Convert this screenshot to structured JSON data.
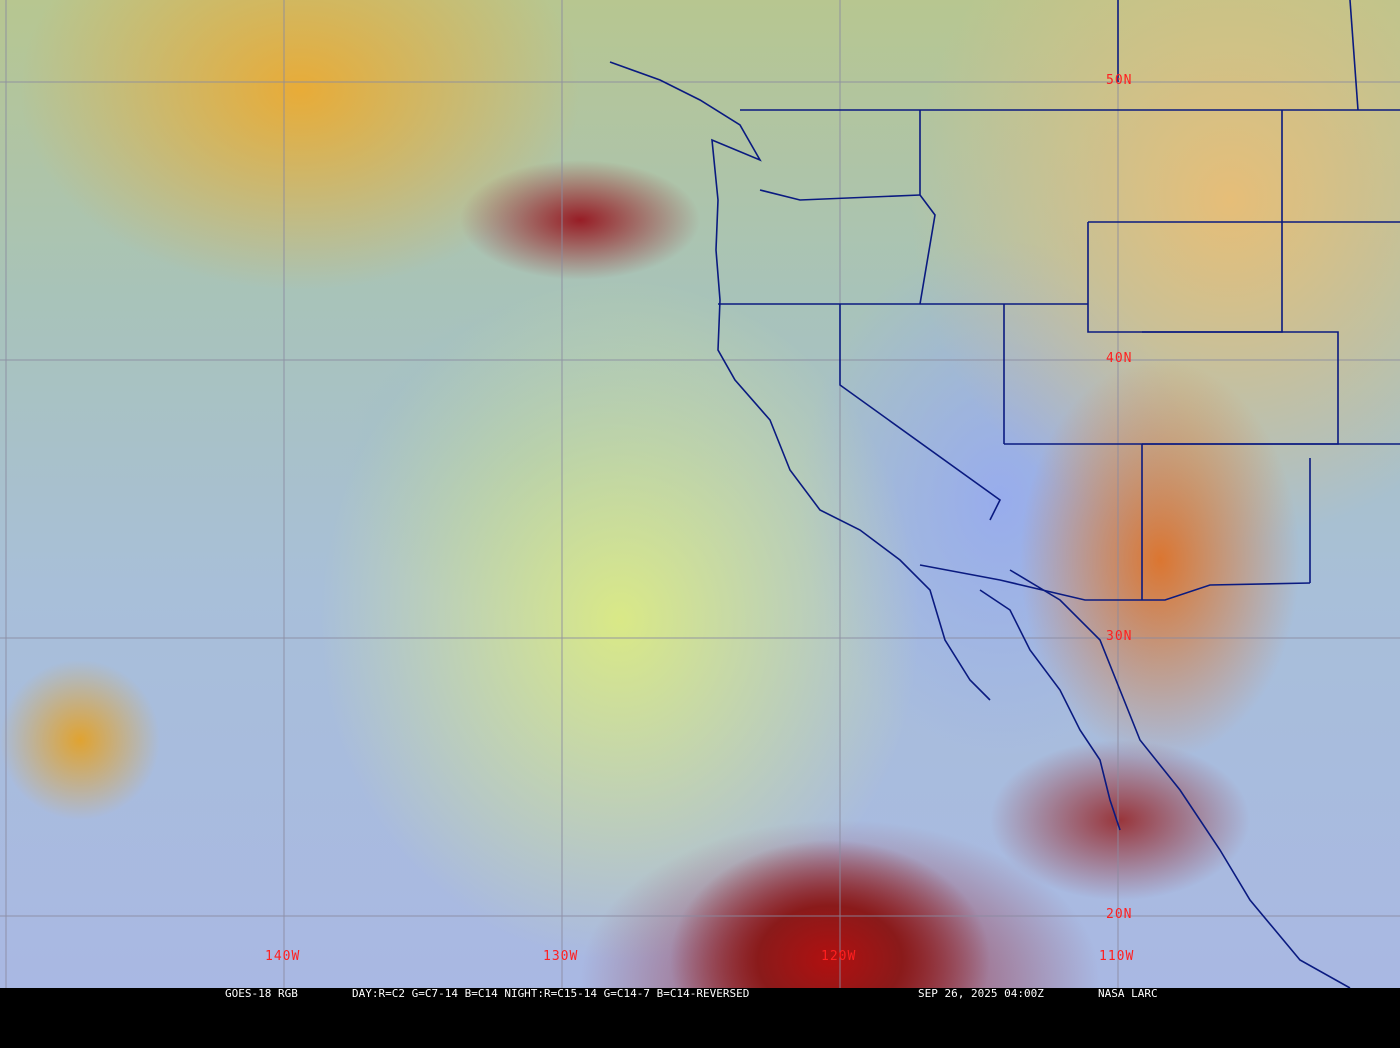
{
  "map": {
    "product": "GOES-18 RGB",
    "recipe": "DAY:R=C2 G=C7-14 B=C14 NIGHT:R=C15-14 G=C14-7 B=C14-REVERSED",
    "datetime": "SEP 26, 2025 04:00Z",
    "credit": "NASA LARC",
    "latitude_labels": [
      "50N",
      "40N",
      "30N",
      "20N"
    ],
    "longitude_labels": [
      "140W",
      "130W",
      "120W",
      "110W"
    ],
    "colors": {
      "grid": "#8a8aa0",
      "borders": "#0a1a80",
      "labels": "#ff2020",
      "caption_bg": "#000000",
      "caption_text": "#ffffff"
    }
  }
}
